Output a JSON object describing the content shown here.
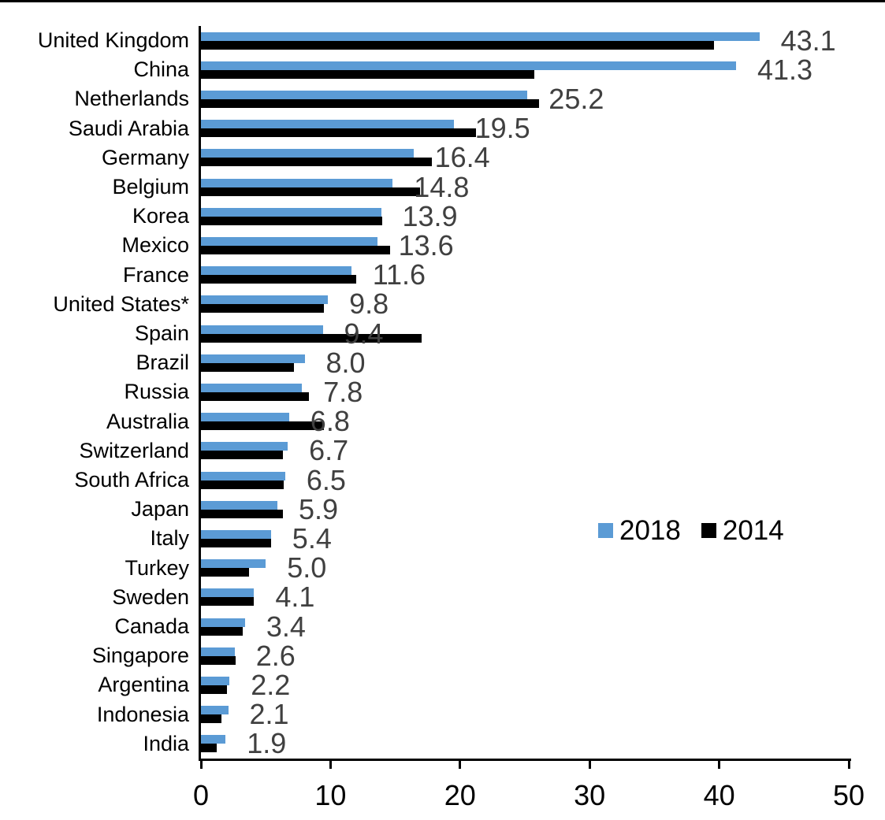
{
  "chart_data": {
    "type": "bar",
    "orientation": "horizontal",
    "title": "",
    "xlabel": "",
    "ylabel": "",
    "xlim": [
      0,
      50
    ],
    "xticks": [
      0,
      10,
      20,
      30,
      40,
      50
    ],
    "xtick_labels": [
      "0",
      "10",
      "20",
      "30",
      "40",
      "50"
    ],
    "grid": false,
    "categories": [
      "United Kingdom",
      "China",
      "Netherlands",
      "Saudi Arabia",
      "Germany",
      "Belgium",
      "Korea",
      "Mexico",
      "France",
      "United States*",
      "Spain",
      "Brazil",
      "Russia",
      "Australia",
      "Switzerland",
      "South Africa",
      "Japan",
      "Italy",
      "Turkey",
      "Sweden",
      "Canada",
      "Singapore",
      "Argentina",
      "Indonesia",
      "India"
    ],
    "series": [
      {
        "name": "2018",
        "color": "#5B9BD5",
        "values": [
          43.1,
          41.3,
          25.2,
          19.5,
          16.4,
          14.8,
          13.9,
          13.6,
          11.6,
          9.8,
          9.4,
          8.0,
          7.8,
          6.8,
          6.7,
          6.5,
          5.9,
          5.4,
          5.0,
          4.1,
          3.4,
          2.6,
          2.2,
          2.1,
          1.9
        ]
      },
      {
        "name": "2014",
        "color": "#000000",
        "values": [
          39.6,
          25.7,
          26.1,
          21.2,
          17.8,
          16.9,
          14.0,
          14.6,
          12.0,
          9.5,
          17.0,
          7.2,
          8.3,
          9.5,
          6.3,
          6.4,
          6.3,
          5.4,
          3.7,
          4.1,
          3.2,
          2.7,
          2.0,
          1.6,
          1.2
        ]
      }
    ],
    "value_labels": [
      "43.1",
      "41.3",
      "25.2",
      "19.5",
      "16.4",
      "14.8",
      "13.9",
      "13.6",
      "11.6",
      "9.8",
      "9.4",
      "8.0",
      "7.8",
      "6.8",
      "6.7",
      "6.5",
      "5.9",
      "5.4",
      "5.0",
      "4.1",
      "3.4",
      "2.6",
      "2.2",
      "2.1",
      "1.9"
    ],
    "value_label_series": "2018",
    "value_label_color": "#404040",
    "legend": {
      "position": "middle-right",
      "entries": [
        "2018",
        "2014"
      ]
    }
  }
}
